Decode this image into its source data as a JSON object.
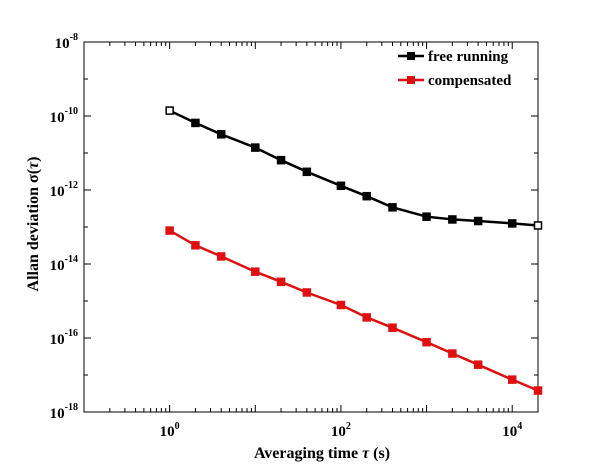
{
  "chart_data": {
    "type": "line",
    "x_scale": "log",
    "y_scale": "log",
    "xlabel": "Averaging time τ (s)",
    "xlabel_parts": {
      "prefix": "Averaging time ",
      "symbol": "τ",
      "suffix": " (s)"
    },
    "ylabel": "Allan deviation σ(τ)",
    "ylabel_parts": {
      "prefix": "Allan deviation ",
      "symbol": "σ",
      "paren_open": "(",
      "arg": "τ",
      "paren_close": ")"
    },
    "xlim": [
      0.1,
      20000
    ],
    "ylim": [
      1e-18,
      1e-08
    ],
    "x_ticks": [
      {
        "base": "10",
        "exp": "0",
        "value": 1
      },
      {
        "base": "10",
        "exp": "2",
        "value": 100
      },
      {
        "base": "10",
        "exp": "4",
        "value": 10000
      }
    ],
    "y_ticks": [
      {
        "base": "10",
        "exp": "-8",
        "value": 1e-08
      },
      {
        "base": "10",
        "exp": "-10",
        "value": 1e-10
      },
      {
        "base": "10",
        "exp": "-12",
        "value": 1e-12
      },
      {
        "base": "10",
        "exp": "-14",
        "value": 1e-14
      },
      {
        "base": "10",
        "exp": "-16",
        "value": 1e-16
      },
      {
        "base": "10",
        "exp": "-18",
        "value": 1e-18
      }
    ],
    "grid": false,
    "legend_position": "top-right",
    "series": [
      {
        "name": "free running",
        "color": "#000000",
        "marker": "square",
        "x": [
          1,
          2,
          4,
          10,
          20,
          40,
          100,
          200,
          400,
          1000,
          2000,
          4000,
          10000,
          20000
        ],
        "y": [
          1.4e-10,
          6.5e-11,
          3.2e-11,
          1.4e-11,
          6.4e-12,
          3.1e-12,
          1.3e-12,
          6.8e-13,
          3.4e-13,
          1.9e-13,
          1.6e-13,
          1.45e-13,
          1.25e-13,
          1.1e-13
        ]
      },
      {
        "name": "compensated",
        "color": "#e01010",
        "marker": "square",
        "x": [
          1,
          2,
          4,
          10,
          20,
          40,
          100,
          200,
          400,
          1000,
          2000,
          4000,
          10000,
          20000
        ],
        "y": [
          8e-14,
          3.2e-14,
          1.6e-14,
          6.2e-15,
          3.3e-15,
          1.7e-15,
          7.8e-16,
          3.6e-16,
          1.9e-16,
          7.7e-17,
          3.8e-17,
          1.9e-17,
          7.5e-18,
          3.8e-18
        ]
      }
    ]
  }
}
